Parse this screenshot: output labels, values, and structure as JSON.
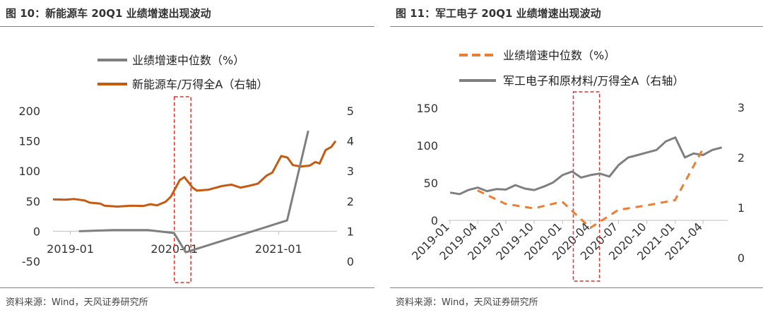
{
  "panels": [
    {
      "title": "图 10：新能源车 20Q1 业绩增速出现波动",
      "source": "资料来源：Wind，天风证券研究所"
    },
    {
      "title": "图 11：军工电子 20Q1 业绩增速出现波动",
      "source": "资料来源：Wind，天风证券研究所"
    }
  ],
  "colors": {
    "gray": "#7f7f7f",
    "orange": "#c55a11",
    "orange_dash": "#ed7d31",
    "highlight": "#e03131",
    "rule": "#c0712a"
  },
  "chart_data": [
    {
      "type": "line",
      "x_ticks": [
        "2019-01",
        "2020-01",
        "2021-01"
      ],
      "y_left": {
        "ticks": [
          "200",
          "150",
          "100",
          "50",
          "0",
          "-50"
        ],
        "range": [
          -50,
          200
        ]
      },
      "y_right": {
        "ticks": [
          "5",
          "4",
          "3",
          "2",
          "1",
          "0"
        ],
        "range": [
          0,
          5
        ]
      },
      "series": [
        {
          "name": "业绩增速中位数（%）",
          "axis": "left",
          "style": "solid-gray",
          "points": [
            [
              "2019-01-31",
              0
            ],
            [
              "2019-05-31",
              2
            ],
            [
              "2019-09-30",
              2
            ],
            [
              "2019-12-31",
              -3
            ],
            [
              "2020-02-10",
              -35
            ],
            [
              "2021-01-31",
              18
            ],
            [
              "2021-04-15",
              167
            ]
          ]
        },
        {
          "name": "新能源车/万得全A（右轴）",
          "axis": "right",
          "style": "solid-orange",
          "points": [
            [
              "2018-11-01",
              2.06
            ],
            [
              "2018-12-15",
              2.05
            ],
            [
              "2019-01-15",
              2.07
            ],
            [
              "2019-02-20",
              2.02
            ],
            [
              "2019-03-10",
              1.95
            ],
            [
              "2019-04-15",
              1.92
            ],
            [
              "2019-05-01",
              1.85
            ],
            [
              "2019-06-15",
              1.82
            ],
            [
              "2019-08-01",
              1.85
            ],
            [
              "2019-09-15",
              1.84
            ],
            [
              "2019-10-10",
              1.9
            ],
            [
              "2019-11-01",
              1.86
            ],
            [
              "2019-12-01",
              1.98
            ],
            [
              "2019-12-20",
              2.15
            ],
            [
              "2020-01-20",
              2.7
            ],
            [
              "2020-02-05",
              2.8
            ],
            [
              "2020-03-05",
              2.45
            ],
            [
              "2020-03-20",
              2.35
            ],
            [
              "2020-04-30",
              2.38
            ],
            [
              "2020-06-15",
              2.5
            ],
            [
              "2020-07-20",
              2.55
            ],
            [
              "2020-08-20",
              2.45
            ],
            [
              "2020-09-15",
              2.5
            ],
            [
              "2020-10-20",
              2.58
            ],
            [
              "2020-11-20",
              2.85
            ],
            [
              "2020-12-10",
              2.95
            ],
            [
              "2021-01-10",
              3.5
            ],
            [
              "2021-02-01",
              3.45
            ],
            [
              "2021-02-20",
              3.2
            ],
            [
              "2021-03-20",
              3.15
            ],
            [
              "2021-04-20",
              3.18
            ],
            [
              "2021-05-10",
              3.3
            ],
            [
              "2021-05-25",
              3.25
            ],
            [
              "2021-06-15",
              3.7
            ],
            [
              "2021-07-05",
              3.8
            ],
            [
              "2021-07-20",
              4.0
            ]
          ]
        }
      ],
      "highlight": {
        "from": "2020-01-01",
        "to": "2020-02-28"
      }
    },
    {
      "type": "line",
      "x_ticks": [
        "2019-01",
        "2019-04",
        "2019-07",
        "2019-10",
        "2020-01",
        "2020-04",
        "2020-07",
        "2020-10",
        "2021-01",
        "2021-04"
      ],
      "y_left": {
        "ticks": [
          "150",
          "100",
          "50",
          "0"
        ],
        "range": [
          -50,
          150
        ]
      },
      "y_right": {
        "ticks": [
          "3",
          "2",
          "1",
          "0"
        ],
        "range": [
          0,
          3
        ]
      },
      "series": [
        {
          "name": "业绩增速中位数（%）",
          "axis": "left",
          "style": "dashed-orange",
          "points": [
            [
              "2019-03-31",
              40
            ],
            [
              "2019-06-30",
              22
            ],
            [
              "2019-09-30",
              16
            ],
            [
              "2019-12-31",
              25
            ],
            [
              "2020-03-31",
              -10
            ],
            [
              "2020-06-30",
              14
            ],
            [
              "2020-09-30",
              20
            ],
            [
              "2020-12-31",
              27
            ],
            [
              "2021-03-31",
              95
            ]
          ]
        },
        {
          "name": "军工电子和原材料/万得全A（右轴）",
          "axis": "right",
          "style": "solid-gray",
          "points": [
            [
              "2019-01-01",
              1.3
            ],
            [
              "2019-02-01",
              1.27
            ],
            [
              "2019-03-01",
              1.35
            ],
            [
              "2019-04-01",
              1.4
            ],
            [
              "2019-05-01",
              1.33
            ],
            [
              "2019-06-01",
              1.37
            ],
            [
              "2019-07-01",
              1.36
            ],
            [
              "2019-08-01",
              1.45
            ],
            [
              "2019-09-01",
              1.38
            ],
            [
              "2019-10-01",
              1.35
            ],
            [
              "2019-11-01",
              1.42
            ],
            [
              "2019-12-01",
              1.5
            ],
            [
              "2020-01-01",
              1.65
            ],
            [
              "2020-02-01",
              1.72
            ],
            [
              "2020-03-01",
              1.6
            ],
            [
              "2020-04-01",
              1.65
            ],
            [
              "2020-05-01",
              1.68
            ],
            [
              "2020-06-01",
              1.62
            ],
            [
              "2020-07-01",
              1.85
            ],
            [
              "2020-08-01",
              2.0
            ],
            [
              "2020-09-01",
              2.05
            ],
            [
              "2020-10-01",
              2.1
            ],
            [
              "2020-11-01",
              2.15
            ],
            [
              "2020-12-01",
              2.32
            ],
            [
              "2021-01-01",
              2.4
            ],
            [
              "2021-02-01",
              2.0
            ],
            [
              "2021-03-01",
              2.08
            ],
            [
              "2021-04-01",
              2.05
            ],
            [
              "2021-05-01",
              2.15
            ],
            [
              "2021-06-01",
              2.2
            ]
          ]
        }
      ],
      "highlight": {
        "from": "2020-02-05",
        "to": "2020-04-30"
      }
    }
  ]
}
